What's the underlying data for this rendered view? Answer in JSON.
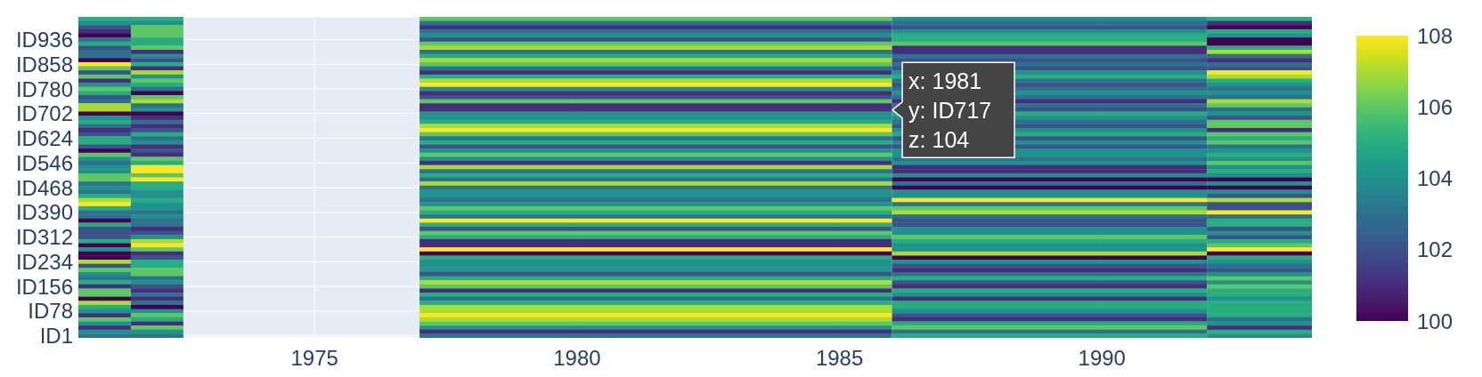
{
  "chart_data": {
    "type": "heatmap",
    "x": [
      1971,
      1972,
      1973,
      1981,
      1991,
      1993
    ],
    "xlim": [
      1970.5,
      1994
    ],
    "xticks": [
      1975,
      1980,
      1985,
      1990
    ],
    "y_categories": [
      null,
      null,
      null,
      null,
      null,
      "ID936",
      null,
      null,
      null,
      null,
      null,
      "ID858",
      null,
      null,
      null,
      null,
      null,
      "ID780",
      null,
      null,
      null,
      null,
      null,
      "ID702",
      null,
      null,
      null,
      null,
      null,
      "ID624",
      null,
      null,
      null,
      null,
      null,
      "ID546",
      null,
      null,
      null,
      null,
      null,
      "ID468",
      null,
      null,
      null,
      null,
      null,
      "ID390",
      null,
      null,
      null,
      null,
      null,
      "ID312",
      null,
      null,
      null,
      null,
      null,
      "ID234",
      null,
      null,
      null,
      null,
      null,
      "ID156",
      null,
      null,
      null,
      null,
      null,
      "ID78",
      null,
      null,
      null,
      null,
      null,
      "ID1"
    ],
    "cells": [
      [
        105,
        105,
        null,
        106,
        104,
        105
      ],
      [
        104,
        104,
        null,
        103,
        103,
        101
      ],
      [
        102,
        106,
        null,
        101,
        102,
        100
      ],
      [
        101,
        106,
        null,
        103,
        104,
        105
      ],
      [
        100,
        106,
        null,
        104,
        105,
        104
      ],
      [
        103,
        105,
        null,
        102,
        105,
        100
      ],
      [
        105,
        105,
        null,
        106,
        106,
        100
      ],
      [
        102,
        106,
        null,
        107,
        101,
        105
      ],
      [
        103,
        101,
        null,
        103,
        101,
        107
      ],
      [
        103,
        104,
        null,
        105,
        103,
        103
      ],
      [
        100,
        102,
        null,
        107,
        102,
        101
      ],
      [
        108,
        105,
        null,
        106,
        103,
        103
      ],
      [
        106,
        101,
        null,
        103,
        102,
        102
      ],
      [
        102,
        107,
        null,
        101,
        104,
        108
      ],
      [
        106,
        104,
        null,
        105,
        105,
        107
      ],
      [
        101,
        106,
        null,
        107,
        103,
        105
      ],
      [
        104,
        105,
        null,
        108,
        102,
        104
      ],
      [
        106,
        103,
        null,
        104,
        103,
        103
      ],
      [
        105,
        100,
        null,
        101,
        104,
        104
      ],
      [
        102,
        106,
        null,
        102,
        103,
        103
      ],
      [
        103,
        107,
        null,
        106,
        101,
        107
      ],
      [
        107,
        103,
        null,
        101,
        103,
        106
      ],
      [
        107,
        104,
        null,
        101,
        102,
        103
      ],
      [
        100,
        100,
        null,
        104,
        105,
        104
      ],
      [
        104,
        101,
        null,
        104,
        104,
        102
      ],
      [
        105,
        103,
        null,
        105,
        103,
        106
      ],
      [
        103,
        101,
        null,
        107,
        102,
        106
      ],
      [
        101,
        102,
        null,
        108,
        104,
        101
      ],
      [
        102,
        105,
        null,
        106,
        105,
        106
      ],
      [
        105,
        103,
        null,
        103,
        102,
        105
      ],
      [
        105,
        104,
        null,
        105,
        104,
        106
      ],
      [
        102,
        101,
        null,
        102,
        102,
        103
      ],
      [
        100,
        102,
        null,
        104,
        104,
        104
      ],
      [
        106,
        101,
        null,
        106,
        104,
        105
      ],
      [
        104,
        106,
        null,
        104,
        103,
        104
      ],
      [
        103,
        105,
        null,
        101,
        104,
        106
      ],
      [
        104,
        108,
        null,
        107,
        101,
        104
      ],
      [
        104,
        108,
        null,
        103,
        101,
        105
      ],
      [
        106,
        106,
        null,
        105,
        104,
        104
      ],
      [
        106,
        108,
        null,
        103,
        100,
        100
      ],
      [
        103,
        105,
        null,
        107,
        103,
        104
      ],
      [
        104,
        105,
        null,
        103,
        100,
        100
      ],
      [
        103,
        104,
        null,
        104,
        104,
        104
      ],
      [
        105,
        104,
        null,
        104,
        104,
        102
      ],
      [
        107,
        105,
        null,
        103,
        108,
        107
      ],
      [
        108,
        104,
        null,
        104,
        103,
        102
      ],
      [
        105,
        104,
        null,
        106,
        106,
        102
      ],
      [
        103,
        103,
        null,
        105,
        107,
        108
      ],
      [
        103,
        104,
        null,
        103,
        103,
        103
      ],
      [
        100,
        103,
        null,
        108,
        102,
        105
      ],
      [
        105,
        103,
        null,
        105,
        102,
        105
      ],
      [
        102,
        101,
        null,
        102,
        104,
        102
      ],
      [
        102,
        102,
        null,
        106,
        104,
        104
      ],
      [
        102,
        104,
        null,
        105,
        106,
        102
      ],
      [
        105,
        107,
        null,
        101,
        105,
        105
      ],
      [
        100,
        108,
        null,
        101,
        104,
        106
      ],
      [
        104,
        106,
        null,
        108,
        104,
        108
      ],
      [
        100,
        101,
        null,
        100,
        107,
        100
      ],
      [
        100,
        102,
        null,
        105,
        100,
        105
      ],
      [
        107,
        105,
        null,
        104,
        104,
        104
      ],
      [
        102,
        105,
        null,
        104,
        102,
        103
      ],
      [
        106,
        106,
        null,
        104,
        101,
        102
      ],
      [
        104,
        106,
        null,
        102,
        103,
        104
      ],
      [
        103,
        103,
        null,
        105,
        105,
        106
      ],
      [
        105,
        104,
        null,
        107,
        102,
        104
      ],
      [
        101,
        102,
        null,
        106,
        101,
        106
      ],
      [
        106,
        101,
        null,
        101,
        105,
        105
      ],
      [
        106,
        103,
        null,
        105,
        104,
        105
      ],
      [
        100,
        101,
        null,
        103,
        101,
        104
      ],
      [
        107,
        103,
        null,
        105,
        105,
        105
      ],
      [
        105,
        100,
        null,
        107,
        105,
        105
      ],
      [
        104,
        104,
        null,
        107,
        104,
        105
      ],
      [
        101,
        106,
        null,
        108,
        102,
        105
      ],
      [
        106,
        105,
        null,
        107,
        101,
        103
      ],
      [
        104,
        101,
        null,
        106,
        105,
        104
      ],
      [
        101,
        106,
        null,
        104,
        106,
        101
      ],
      [
        104,
        104,
        null,
        101,
        103,
        105
      ],
      [
        103,
        103,
        null,
        103,
        105,
        104
      ]
    ],
    "clim": [
      100,
      108
    ],
    "cticks": [
      100,
      102,
      104,
      106,
      108
    ],
    "grid": true,
    "annotations": [
      "x: 1981\ny: ID717\nz: 104"
    ]
  }
}
